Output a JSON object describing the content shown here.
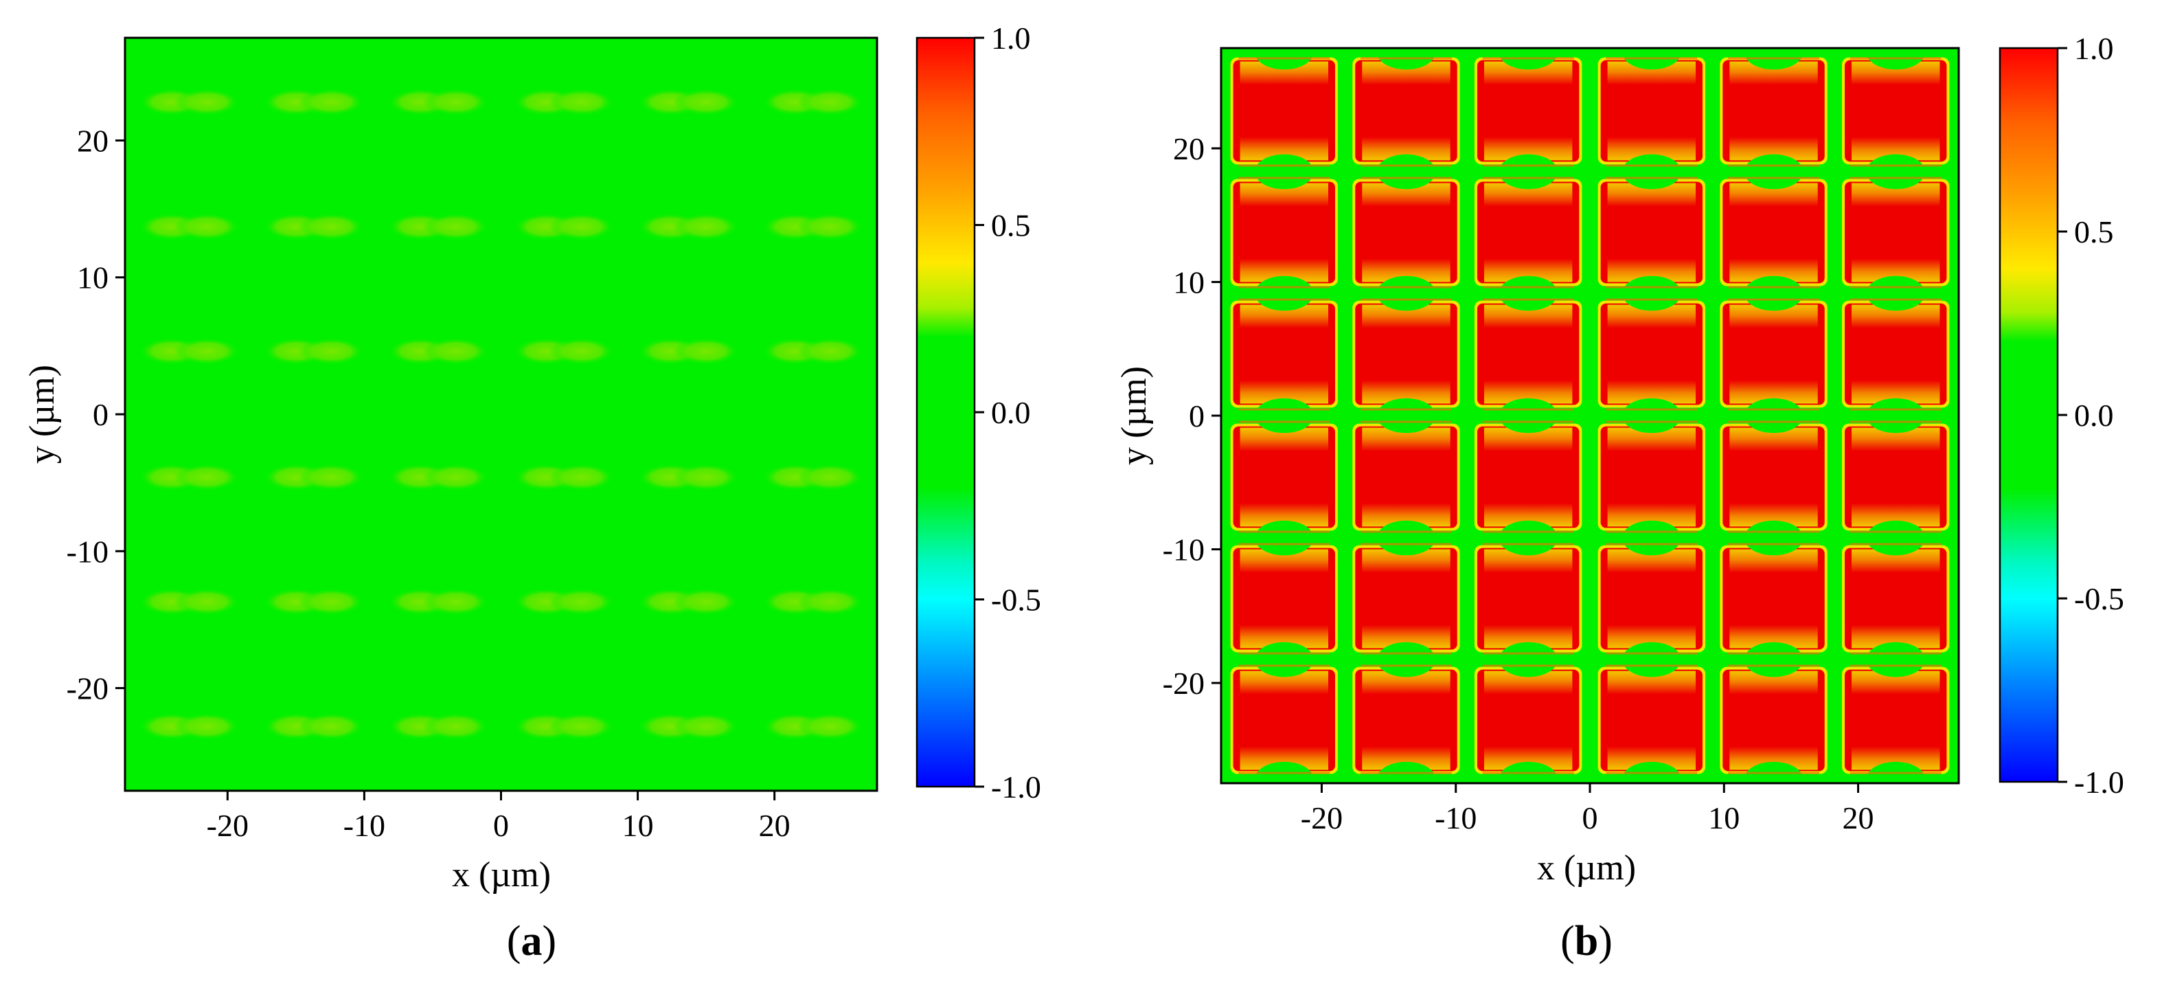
{
  "chart_data": [
    {
      "type": "heatmap",
      "panel_label": "a",
      "panel_open": "(",
      "panel_close": ")",
      "xlabel": "x (µm)",
      "ylabel": "y (µm)",
      "xlim": [
        -27.5,
        27.5
      ],
      "ylim": [
        -27.5,
        27.5
      ],
      "x_ticks": [
        -20,
        -10,
        0,
        10,
        20
      ],
      "x_tick_labels": [
        "-20",
        "-10",
        "0",
        "10",
        "20"
      ],
      "y_ticks": [
        -20,
        -10,
        0,
        10,
        20
      ],
      "y_tick_labels": [
        "-20",
        "-10",
        "0",
        "10",
        "20"
      ],
      "background_value": 0.0,
      "spot_value": 0.15,
      "spot_x_centers": [
        -22.8,
        -13.7,
        -4.6,
        4.6,
        13.7,
        22.8
      ],
      "spot_y_centers": [
        -22.8,
        -13.7,
        -4.6,
        4.6,
        13.7,
        22.8
      ],
      "colorbar": {
        "range": [
          -1.0,
          1.0
        ],
        "ticks": [
          1.0,
          0.5,
          0.0,
          -0.5,
          -1.0
        ],
        "tick_labels": [
          "1.0",
          "0.5",
          "0.0",
          "-0.5",
          "-1.0"
        ]
      }
    },
    {
      "type": "heatmap",
      "panel_label": "b",
      "panel_open": "(",
      "panel_close": ")",
      "xlabel": "x (µm)",
      "ylabel": "y (µm)",
      "xlim": [
        -27.5,
        27.5
      ],
      "ylim": [
        -27.5,
        27.5
      ],
      "x_ticks": [
        -20,
        -10,
        0,
        10,
        20
      ],
      "x_tick_labels": [
        "-20",
        "-10",
        "0",
        "10",
        "20"
      ],
      "y_ticks": [
        -20,
        -10,
        0,
        10,
        20
      ],
      "y_tick_labels": [
        "-20",
        "-10",
        "0",
        "10",
        "20"
      ],
      "background_value": 0.0,
      "cell_value": 1.0,
      "cell_x_centers": [
        -22.8,
        -13.7,
        -4.6,
        4.6,
        13.7,
        22.8
      ],
      "cell_y_centers": [
        -22.8,
        -13.7,
        -4.6,
        4.6,
        13.7,
        22.8
      ],
      "cell_size": 7.6,
      "colorbar": {
        "range": [
          -1.0,
          1.0
        ],
        "ticks": [
          1.0,
          0.5,
          0.0,
          -0.5,
          -1.0
        ],
        "tick_labels": [
          "1.0",
          "0.5",
          "0.0",
          "-0.5",
          "-1.0"
        ]
      }
    }
  ],
  "colors": {
    "green": "#00f000",
    "red": "#ee0000",
    "spot_green": "#66e800",
    "glow_yellow": "#f4e400",
    "glow_orange": "#f49a00"
  }
}
